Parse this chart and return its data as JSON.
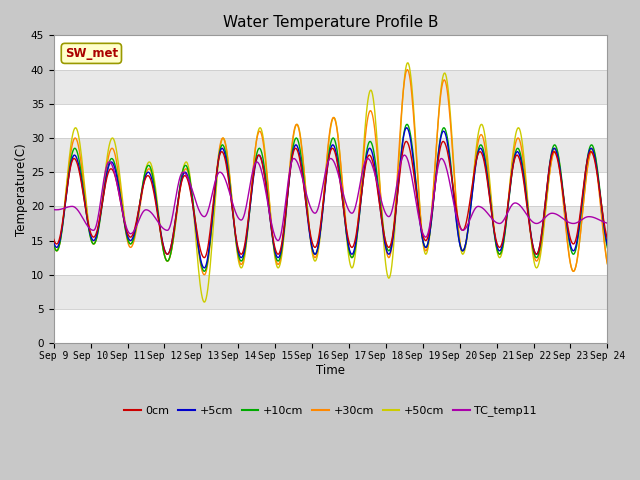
{
  "title": "Water Temperature Profile B",
  "xlabel": "Time",
  "ylabel": "Temperature(C)",
  "ylim": [
    0,
    45
  ],
  "yticks": [
    0,
    5,
    10,
    15,
    20,
    25,
    30,
    35,
    40,
    45
  ],
  "xlim": [
    0,
    15
  ],
  "xtick_labels": [
    "Sep 9",
    "Sep 10",
    "Sep 11",
    "Sep 12",
    "Sep 13",
    "Sep 14",
    "Sep 15",
    "Sep 16",
    "Sep 17",
    "Sep 18",
    "Sep 19",
    "Sep 20",
    "Sep 21",
    "Sep 22",
    "Sep 23",
    "Sep 24"
  ],
  "series": {
    "0cm": {
      "color": "#cc0000",
      "lw": 1.0
    },
    "+5cm": {
      "color": "#0000cc",
      "lw": 1.0
    },
    "+10cm": {
      "color": "#00aa00",
      "lw": 1.0
    },
    "+30cm": {
      "color": "#ff8800",
      "lw": 1.0
    },
    "+50cm": {
      "color": "#cccc00",
      "lw": 1.0
    },
    "TC_temp11": {
      "color": "#aa00aa",
      "lw": 1.0
    }
  },
  "annotation_text": "SW_met",
  "annotation_color": "#aa0000",
  "annotation_bg": "#ffffcc",
  "annotation_border": "#999900",
  "figsize": [
    6.4,
    4.8
  ],
  "dpi": 100
}
